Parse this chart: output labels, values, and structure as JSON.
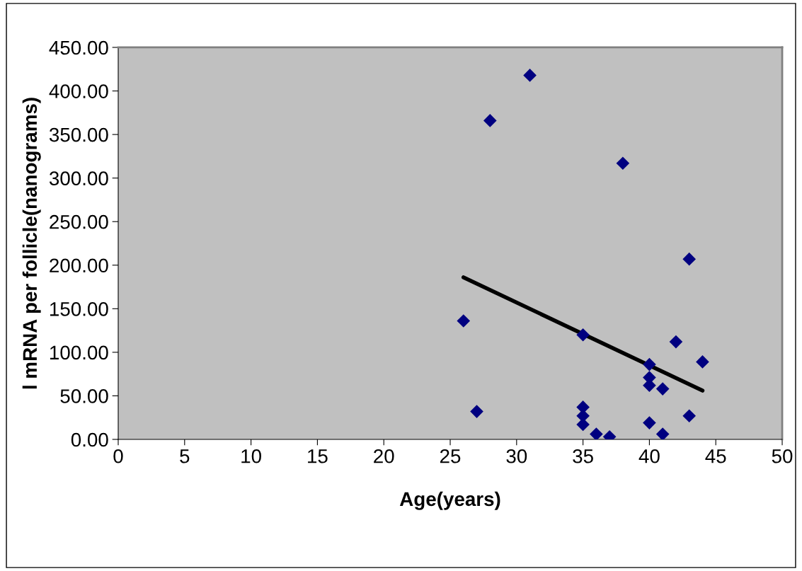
{
  "chart_data": {
    "type": "scatter",
    "xlabel": "Age(years)",
    "ylabel": "l mRNA per follicle(nanograms)",
    "xlim": [
      0,
      50
    ],
    "xticks": [
      0,
      5,
      10,
      15,
      20,
      25,
      30,
      35,
      40,
      45,
      50
    ],
    "ylim": [
      0,
      450
    ],
    "yticks": [
      {
        "value": 0,
        "label": "0.00"
      },
      {
        "value": 50,
        "label": "50.00"
      },
      {
        "value": 100,
        "label": "100.00"
      },
      {
        "value": 150,
        "label": "150.00"
      },
      {
        "value": 200,
        "label": "200.00"
      },
      {
        "value": 250,
        "label": "250.00"
      },
      {
        "value": 300,
        "label": "300.00"
      },
      {
        "value": 350,
        "label": "350.00"
      },
      {
        "value": 400,
        "label": "400.00"
      },
      {
        "value": 450,
        "label": "450.00"
      }
    ],
    "grid": false,
    "legend": false,
    "series": [
      {
        "color": "#000080",
        "marker": "diamond",
        "x": [
          26,
          27,
          28,
          31,
          35,
          35,
          35,
          35,
          36,
          37,
          38,
          40,
          40,
          40,
          40,
          41,
          41,
          42,
          43,
          43,
          44
        ],
        "values": [
          136,
          32,
          366,
          418,
          120,
          37,
          27,
          17,
          6,
          3,
          317,
          86,
          71,
          62,
          19,
          58,
          6,
          112,
          207,
          27,
          89
        ]
      },
      {
        "type": "line",
        "color": "#000000",
        "marker": "none",
        "line_style": "solid",
        "x": [
          26,
          44
        ],
        "values": [
          186,
          56
        ]
      }
    ]
  }
}
